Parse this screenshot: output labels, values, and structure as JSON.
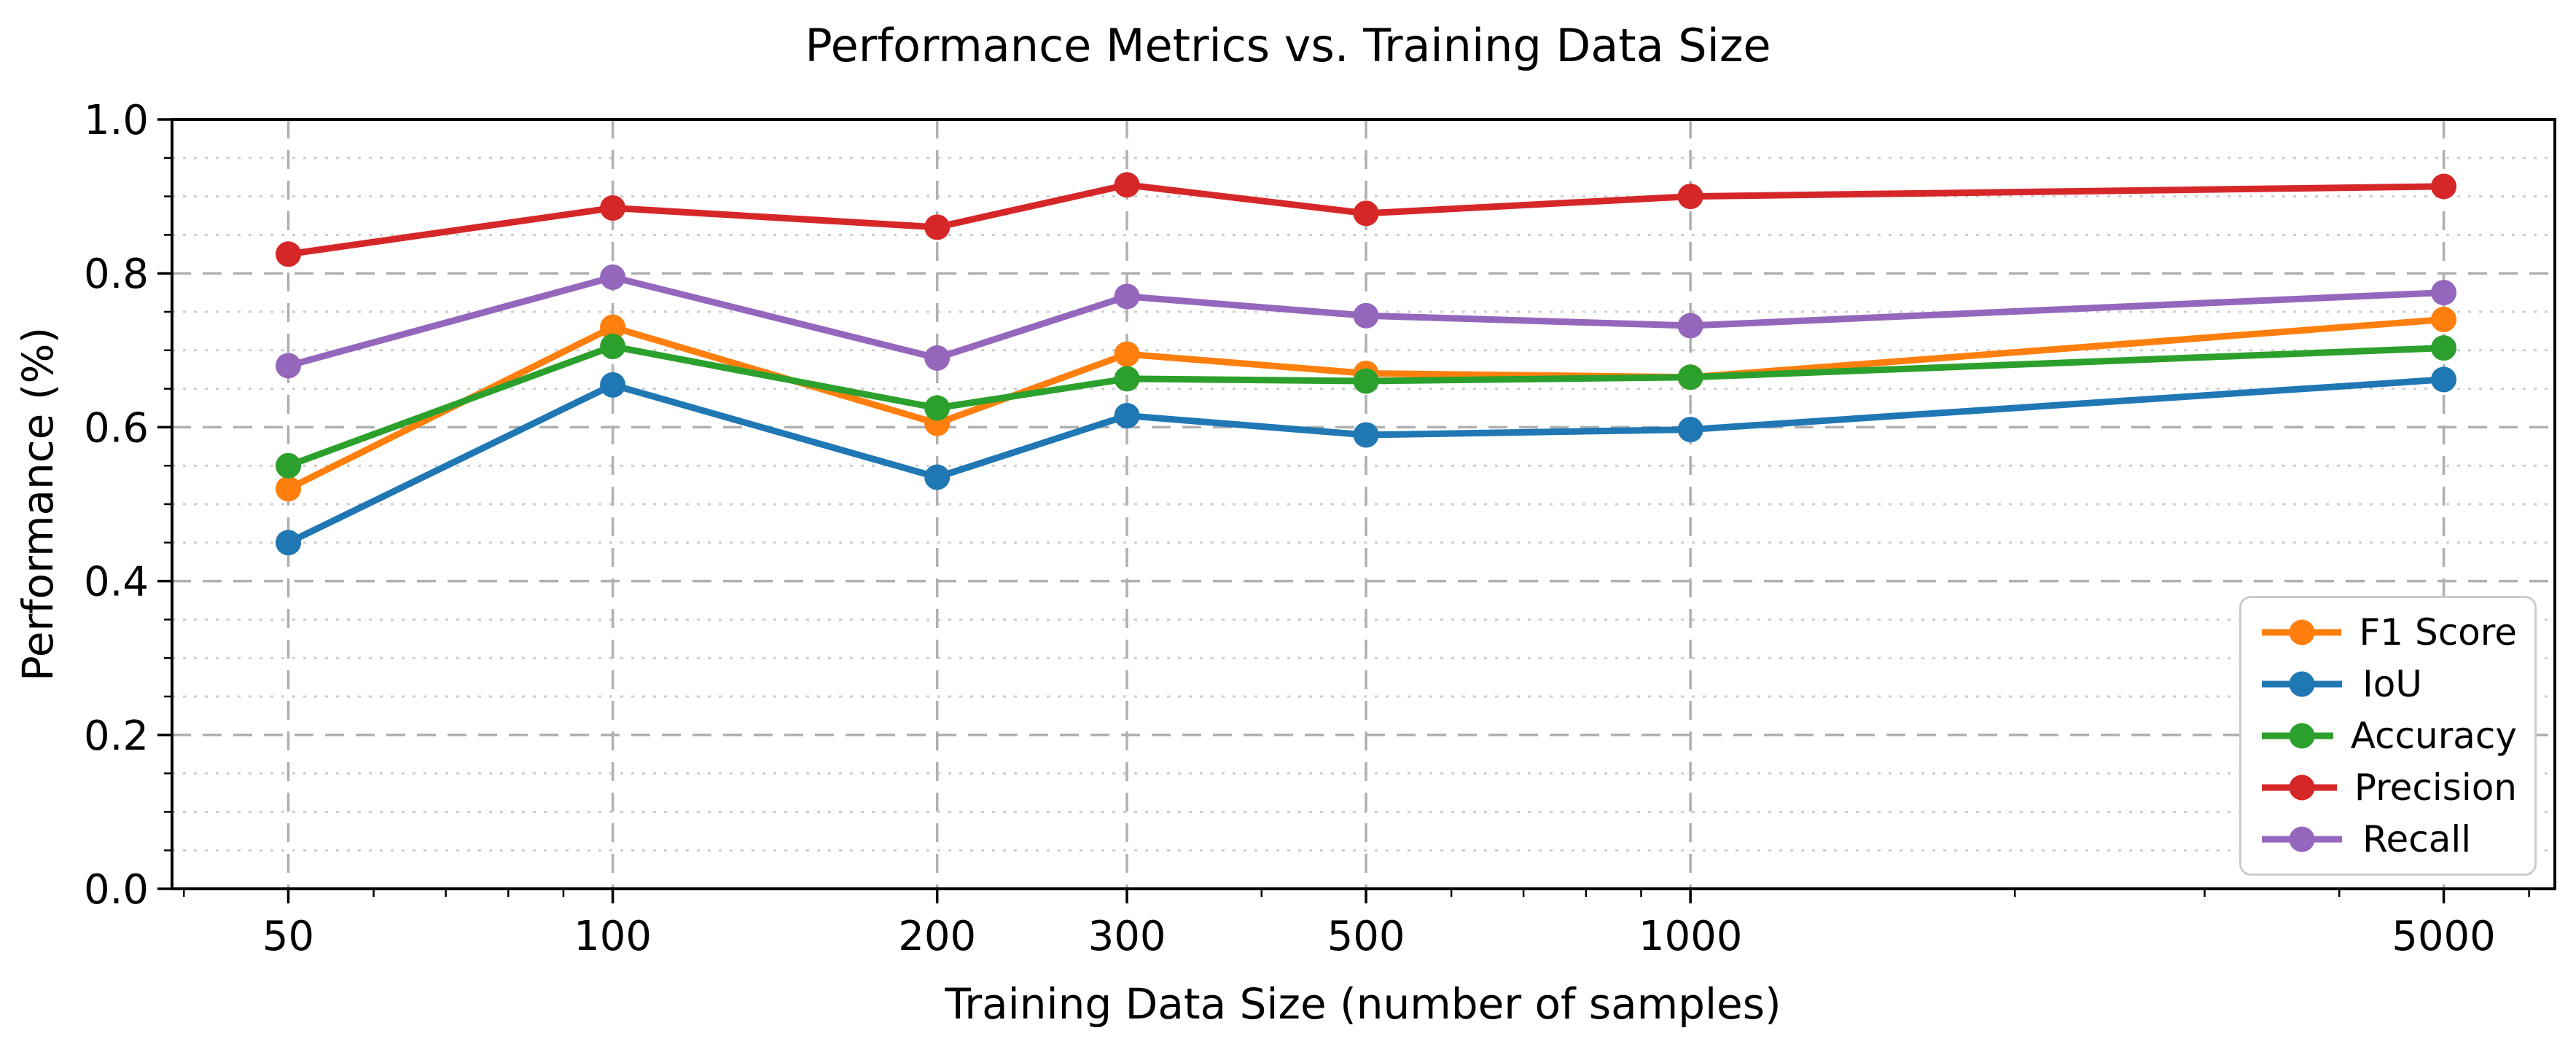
{
  "chart_data": {
    "type": "line",
    "title": "Performance Metrics vs. Training Data Size",
    "xlabel": "Training Data Size (number of samples)",
    "ylabel": "Performance (%)",
    "x_scale": "log",
    "grid": true,
    "legend_position": "lower right",
    "x": [
      50,
      100,
      200,
      300,
      500,
      1000,
      5000
    ],
    "x_tick_labels": [
      "50",
      "100",
      "200",
      "300",
      "500",
      "1000",
      "5000"
    ],
    "x_minor_ticks": [
      40,
      60,
      70,
      80,
      90,
      400,
      600,
      700,
      800,
      900,
      2000,
      3000,
      4000,
      6000
    ],
    "xlim": [
      39.0,
      6340
    ],
    "y_ticks": [
      0.0,
      0.2,
      0.4,
      0.6,
      0.8,
      1.0
    ],
    "y_tick_labels": [
      "0.0",
      "0.2",
      "0.4",
      "0.6",
      "0.8",
      "1.0"
    ],
    "y_minor_ticks": [
      0.05,
      0.1,
      0.15,
      0.25,
      0.3,
      0.35,
      0.45,
      0.5,
      0.55,
      0.65,
      0.7,
      0.75,
      0.85,
      0.9,
      0.95
    ],
    "ylim": [
      0.0,
      1.0
    ],
    "series": [
      {
        "name": "F1 Score",
        "color": "#ff7f0e",
        "values": [
          0.52,
          0.73,
          0.605,
          0.695,
          0.67,
          0.665,
          0.74
        ]
      },
      {
        "name": "IoU",
        "color": "#1f77b4",
        "values": [
          0.45,
          0.655,
          0.535,
          0.615,
          0.59,
          0.597,
          0.662
        ]
      },
      {
        "name": "Accuracy",
        "color": "#2ca02c",
        "values": [
          0.55,
          0.705,
          0.625,
          0.663,
          0.66,
          0.665,
          0.703
        ]
      },
      {
        "name": "Precision",
        "color": "#d62728",
        "values": [
          0.825,
          0.885,
          0.86,
          0.915,
          0.878,
          0.9,
          0.913
        ]
      },
      {
        "name": "Recall",
        "color": "#9467bd",
        "values": [
          0.68,
          0.795,
          0.69,
          0.77,
          0.745,
          0.732,
          0.775
        ]
      }
    ],
    "style": {
      "grid_major_color": "#b0b0b0",
      "grid_minor_color": "#cdcdcd",
      "spine_color": "#000000",
      "background_color": "#ffffff",
      "legend_border_color": "#cccccc"
    }
  }
}
